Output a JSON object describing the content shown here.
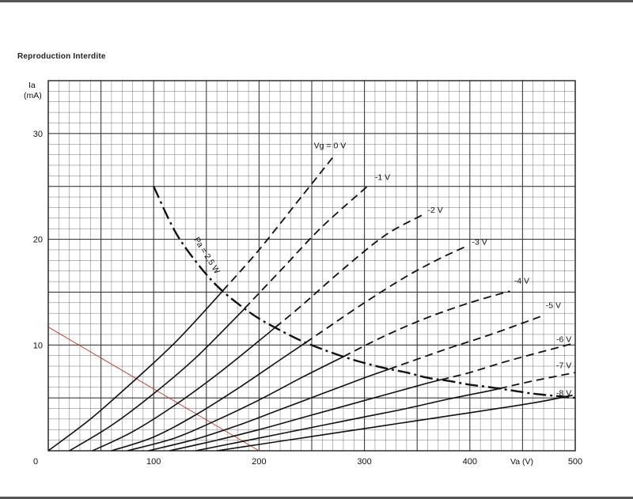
{
  "page": {
    "note": "Reproduction Interdite"
  },
  "chart_data": {
    "type": "line",
    "title": "",
    "xlabel": "Va (V)",
    "ylabel_line1": "Ia",
    "ylabel_line2": "(mA)",
    "xlim": [
      0,
      500
    ],
    "ylim": [
      0,
      35
    ],
    "xticks": [
      0,
      100,
      200,
      300,
      400,
      500
    ],
    "xtick_labels": [
      "0",
      "100",
      "200",
      "300",
      "400",
      "500"
    ],
    "yticks": [
      10,
      20,
      30
    ],
    "ytick_labels": [
      "10",
      "20",
      "30"
    ],
    "grid": true,
    "series": [
      {
        "name": "Vg = 0 V",
        "label": "Vg = 0 V",
        "label_at": [
          252,
          28.6
        ],
        "points": [
          [
            0,
            0
          ],
          [
            40,
            3
          ],
          [
            80,
            6.5
          ],
          [
            120,
            10.2
          ],
          [
            160,
            14.5
          ],
          [
            200,
            19
          ],
          [
            240,
            24
          ],
          [
            272,
            28
          ]
        ]
      },
      {
        "name": "-1 V",
        "label": "-1 V",
        "label_at": [
          310,
          25.6
        ],
        "points": [
          [
            20,
            0
          ],
          [
            60,
            2.4
          ],
          [
            100,
            5.4
          ],
          [
            140,
            8.8
          ],
          [
            180,
            12.8
          ],
          [
            220,
            17
          ],
          [
            260,
            21.2
          ],
          [
            305,
            25.2
          ]
        ]
      },
      {
        "name": "-2 V",
        "label": "-2 V",
        "label_at": [
          360,
          22.5
        ],
        "points": [
          [
            42,
            0
          ],
          [
            80,
            1.8
          ],
          [
            120,
            4.3
          ],
          [
            160,
            7.2
          ],
          [
            200,
            10.4
          ],
          [
            240,
            13.7
          ],
          [
            280,
            17.2
          ],
          [
            320,
            20.4
          ],
          [
            355,
            22.3
          ]
        ]
      },
      {
        "name": "-3 V",
        "label": "-3 V",
        "label_at": [
          402,
          19.5
        ],
        "points": [
          [
            60,
            0
          ],
          [
            100,
            1.3
          ],
          [
            140,
            3.4
          ],
          [
            180,
            5.9
          ],
          [
            220,
            8.6
          ],
          [
            260,
            11.3
          ],
          [
            300,
            14
          ],
          [
            340,
            16.5
          ],
          [
            372,
            18.2
          ],
          [
            398,
            19.4
          ]
        ]
      },
      {
        "name": "-4 V",
        "label": "-4 V",
        "label_at": [
          442,
          15.8
        ],
        "points": [
          [
            75,
            0
          ],
          [
            120,
            1.2
          ],
          [
            160,
            2.9
          ],
          [
            200,
            4.8
          ],
          [
            240,
            6.9
          ],
          [
            280,
            8.9
          ],
          [
            320,
            10.9
          ],
          [
            360,
            12.6
          ],
          [
            400,
            14
          ],
          [
            438,
            15.1
          ]
        ]
      },
      {
        "name": "-5 V",
        "label": "-5 V",
        "label_at": [
          472,
          13.5
        ],
        "points": [
          [
            95,
            0
          ],
          [
            140,
            1.1
          ],
          [
            180,
            2.4
          ],
          [
            220,
            3.9
          ],
          [
            260,
            5.4
          ],
          [
            300,
            6.9
          ],
          [
            340,
            8.3
          ],
          [
            380,
            9.7
          ],
          [
            420,
            11
          ],
          [
            470,
            12.8
          ]
        ]
      },
      {
        "name": "-6 V",
        "label": "-6 V",
        "label_at": [
          482,
          10.3
        ],
        "points": [
          [
            115,
            0
          ],
          [
            160,
            1
          ],
          [
            200,
            2
          ],
          [
            240,
            3.1
          ],
          [
            280,
            4.2
          ],
          [
            320,
            5.3
          ],
          [
            360,
            6.4
          ],
          [
            400,
            7.4
          ],
          [
            440,
            8.6
          ],
          [
            500,
            10.2
          ]
        ]
      },
      {
        "name": "-7 V",
        "label": "-7 V",
        "label_at": [
          482,
          7.8
        ],
        "points": [
          [
            140,
            0
          ],
          [
            180,
            0.8
          ],
          [
            220,
            1.6
          ],
          [
            260,
            2.4
          ],
          [
            300,
            3.2
          ],
          [
            340,
            4
          ],
          [
            380,
            4.9
          ],
          [
            420,
            5.7
          ],
          [
            460,
            6.6
          ],
          [
            500,
            7.4
          ]
        ]
      },
      {
        "name": "-8 V",
        "label": "-8 V",
        "label_at": [
          482,
          5.2
        ],
        "points": [
          [
            160,
            0
          ],
          [
            200,
            0.6
          ],
          [
            240,
            1.2
          ],
          [
            280,
            1.8
          ],
          [
            320,
            2.4
          ],
          [
            360,
            3
          ],
          [
            400,
            3.6
          ],
          [
            440,
            4.2
          ],
          [
            470,
            4.7
          ],
          [
            500,
            5.3
          ]
        ]
      }
    ],
    "dissipation_curve": {
      "name": "Pa = 2,5 W",
      "label": "Pa = 2,5 W",
      "label_at": [
        138,
        20
      ],
      "points": [
        [
          100,
          25
        ],
        [
          120,
          20.8
        ],
        [
          140,
          17.9
        ],
        [
          160,
          15.6
        ],
        [
          180,
          13.9
        ],
        [
          200,
          12.5
        ],
        [
          220,
          11.4
        ],
        [
          240,
          10.4
        ],
        [
          260,
          9.6
        ],
        [
          280,
          8.9
        ],
        [
          300,
          8.3
        ],
        [
          320,
          7.8
        ],
        [
          340,
          7.4
        ],
        [
          360,
          6.9
        ],
        [
          380,
          6.6
        ],
        [
          400,
          6.25
        ],
        [
          420,
          6
        ],
        [
          440,
          5.7
        ],
        [
          460,
          5.4
        ],
        [
          480,
          5.2
        ],
        [
          500,
          5
        ]
      ]
    },
    "load_line": {
      "color": "#c0392b",
      "points": [
        [
          0,
          11.7
        ],
        [
          200,
          0
        ]
      ]
    },
    "colors": {
      "curve": "#111111",
      "grid": "#333333",
      "load_line": "#c0392b"
    }
  }
}
